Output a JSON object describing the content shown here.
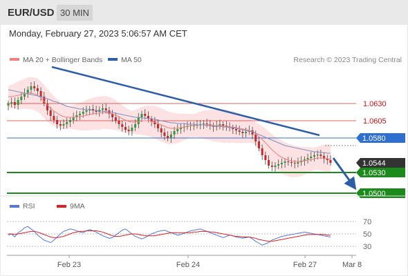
{
  "header": {
    "pair": "EUR/USD",
    "timeframe": "30 MIN"
  },
  "datetime": "Monday, February 27, 2023 5:06:57 AM CET",
  "colors": {
    "ma20": "#f08080",
    "ma50": "#2c5ea8",
    "rsi": "#5577dd",
    "rsi_ma": "#e02020",
    "resistance": "#e06060",
    "pivot": "#3a6fc4",
    "support": "#1a8a1a",
    "arrow": "#2c5ea8"
  },
  "chart_data": [
    {
      "type": "line",
      "name": "price",
      "legend": [
        {
          "label": "MA 20 + Bollinger Bands",
          "color": "#f08080"
        },
        {
          "label": "MA 50",
          "color": "#2c5ea8"
        }
      ],
      "source": "Research © 2023 Trading Central",
      "ylim": [
        1.049,
        1.068
      ],
      "x_ticks": [
        "Feb 23",
        "Feb 24",
        "Feb 27",
        "Mar 8"
      ],
      "levels": [
        {
          "value": 1.063,
          "label": "1.0630",
          "kind": "resistance"
        },
        {
          "value": 1.0605,
          "label": "1.0605",
          "kind": "resistance"
        },
        {
          "value": 1.058,
          "label": "1.0580",
          "kind": "pivot"
        },
        {
          "value": 1.0544,
          "label": "1.0544",
          "kind": "last"
        },
        {
          "value": 1.053,
          "label": "1.0530",
          "kind": "support"
        },
        {
          "value": 1.05,
          "label": "1.0500",
          "kind": "support"
        }
      ],
      "close": [
        1.063,
        1.0632,
        1.0628,
        1.0635,
        1.064,
        1.0645,
        1.065,
        1.0655,
        1.0652,
        1.0648,
        1.064,
        1.063,
        1.062,
        1.0612,
        1.0606,
        1.06,
        1.0598,
        1.06,
        1.0603,
        1.0606,
        1.061,
        1.0613,
        1.0615,
        1.0618,
        1.062,
        1.0622,
        1.062,
        1.0618,
        1.0621,
        1.0623,
        1.062,
        1.0615,
        1.061,
        1.0605,
        1.06,
        1.0596,
        1.0592,
        1.059,
        1.0595,
        1.06,
        1.061,
        1.0615,
        1.0612,
        1.0608,
        1.0604,
        1.06,
        1.0594,
        1.0588,
        1.0583,
        1.058,
        1.0585,
        1.059,
        1.0593,
        1.0595,
        1.0596,
        1.0597,
        1.0598,
        1.0598,
        1.0599,
        1.06,
        1.0601,
        1.06,
        1.0598,
        1.0596,
        1.0598,
        1.06,
        1.0598,
        1.0596,
        1.0595,
        1.0593,
        1.0591,
        1.0589,
        1.0587,
        1.0589,
        1.0591,
        1.0585,
        1.0575,
        1.0565,
        1.0555,
        1.0548,
        1.054,
        1.0538,
        1.054,
        1.0542,
        1.0544,
        1.0546,
        1.0545,
        1.0544,
        1.0543,
        1.0545,
        1.0547,
        1.0549,
        1.0551,
        1.0553,
        1.0555,
        1.0556,
        1.0554,
        1.055,
        1.0548,
        1.0544
      ],
      "ma20": [
        1.064,
        1.064,
        1.0641,
        1.0642,
        1.0643,
        1.0644,
        1.0645,
        1.0645,
        1.0644,
        1.0642,
        1.0638,
        1.0633,
        1.0628,
        1.0623,
        1.0619,
        1.0616,
        1.0613,
        1.0611,
        1.061,
        1.061,
        1.061,
        1.0611,
        1.0611,
        1.0612,
        1.0613,
        1.0614,
        1.0615,
        1.0616,
        1.0616,
        1.0617,
        1.0617,
        1.0616,
        1.0615,
        1.0613,
        1.0611,
        1.0608,
        1.0606,
        1.0604,
        1.0603,
        1.0603,
        1.0604,
        1.0605,
        1.0605,
        1.0605,
        1.0604,
        1.0603,
        1.0601,
        1.0599,
        1.0597,
        1.0595,
        1.0594,
        1.0594,
        1.0594,
        1.0595,
        1.0596,
        1.0597,
        1.0598,
        1.0598,
        1.0599,
        1.0599,
        1.0599,
        1.0599,
        1.0599,
        1.0598,
        1.0598,
        1.0598,
        1.0597,
        1.0597,
        1.0596,
        1.0596,
        1.0595,
        1.0594,
        1.0593,
        1.0592,
        1.0591,
        1.0589,
        1.0586,
        1.0582,
        1.0578,
        1.0573,
        1.0568,
        1.0563,
        1.0559,
        1.0555,
        1.0552,
        1.055,
        1.0548,
        1.0547,
        1.0546,
        1.0546,
        1.0546,
        1.0547,
        1.0548,
        1.0549,
        1.055,
        1.0551,
        1.0551,
        1.0551,
        1.055,
        1.0549
      ],
      "ma50": [
        1.065,
        1.0649,
        1.0648,
        1.0647,
        1.0646,
        1.0645,
        1.0644,
        1.0643,
        1.0642,
        1.0641,
        1.064,
        1.0638,
        1.0637,
        1.0635,
        1.0633,
        1.0632,
        1.063,
        1.0628,
        1.0626,
        1.0625,
        1.0624,
        1.0623,
        1.0622,
        1.0622,
        1.0621,
        1.0621,
        1.062,
        1.062,
        1.0619,
        1.0619,
        1.0618,
        1.0618,
        1.0617,
        1.0616,
        1.0615,
        1.0614,
        1.0613,
        1.0612,
        1.0611,
        1.061,
        1.061,
        1.0609,
        1.0609,
        1.0608,
        1.0608,
        1.0607,
        1.0606,
        1.0605,
        1.0604,
        1.0603,
        1.0602,
        1.0602,
        1.0601,
        1.0601,
        1.0601,
        1.06,
        1.06,
        1.06,
        1.0599,
        1.0599,
        1.0599,
        1.0598,
        1.0598,
        1.0597,
        1.0597,
        1.0597,
        1.0596,
        1.0596,
        1.0595,
        1.0595,
        1.0594,
        1.0593,
        1.0592,
        1.0591,
        1.059,
        1.0589,
        1.0587,
        1.0585,
        1.0583,
        1.0581,
        1.0579,
        1.0577,
        1.0575,
        1.0573,
        1.0571,
        1.0569,
        1.0568,
        1.0567,
        1.0566,
        1.0565,
        1.0564,
        1.0563,
        1.0562,
        1.0561,
        1.056,
        1.056,
        1.0559,
        1.0559,
        1.0558,
        1.0558
      ]
    },
    {
      "type": "line",
      "name": "rsi",
      "legend": [
        {
          "label": "RSI",
          "color": "#5577dd"
        },
        {
          "label": "9MA",
          "color": "#e02020"
        }
      ],
      "ylim": [
        20,
        80
      ],
      "y_ticks": [
        "70",
        "50",
        "30"
      ],
      "rsi": [
        48,
        50,
        45,
        52,
        55,
        60,
        62,
        58,
        54,
        48,
        44,
        40,
        38,
        36,
        40,
        45,
        50,
        54,
        56,
        58,
        57,
        55,
        53,
        52,
        55,
        57,
        55,
        53,
        50,
        47,
        45,
        43,
        44,
        48,
        52,
        56,
        58,
        54,
        50,
        46,
        44,
        42,
        44,
        47,
        50,
        52,
        54,
        55,
        56,
        54,
        52,
        50,
        48,
        49,
        51,
        53,
        55,
        56,
        57,
        58,
        56,
        54,
        52,
        50,
        48,
        46,
        44,
        46,
        48,
        47,
        45,
        44,
        43,
        44,
        45,
        42,
        38,
        35,
        32,
        34,
        36,
        40,
        42,
        44,
        46,
        47,
        48,
        49,
        50,
        51,
        52,
        53,
        52,
        51,
        50,
        49,
        48,
        47,
        46,
        45
      ],
      "rsi_ma": [
        50,
        50,
        49,
        50,
        51,
        52,
        53,
        54,
        54,
        53,
        51,
        49,
        47,
        45,
        44,
        44,
        45,
        46,
        48,
        50,
        52,
        53,
        54,
        54,
        55,
        55,
        55,
        55,
        54,
        53,
        51,
        49,
        47,
        46,
        46,
        47,
        48,
        49,
        50,
        50,
        49,
        48,
        47,
        47,
        47,
        47,
        48,
        49,
        50,
        51,
        52,
        52,
        52,
        52,
        52,
        52,
        52,
        53,
        53,
        54,
        54,
        54,
        53,
        53,
        52,
        51,
        50,
        49,
        48,
        47,
        46,
        46,
        45,
        45,
        45,
        44,
        43,
        41,
        40,
        39,
        38,
        38,
        39,
        40,
        41,
        42,
        43,
        44,
        45,
        46,
        47,
        48,
        49,
        49,
        49,
        49,
        49,
        49,
        48,
        48
      ]
    }
  ]
}
